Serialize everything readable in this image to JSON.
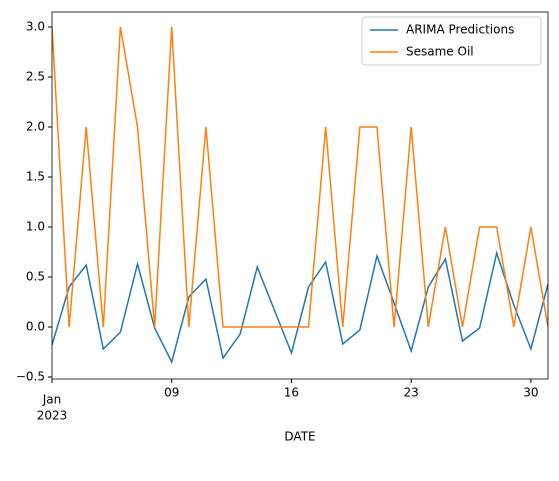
{
  "chart_data": {
    "type": "line",
    "x_label": "DATE",
    "x": [
      "2023-01-02",
      "2023-01-03",
      "2023-01-04",
      "2023-01-05",
      "2023-01-06",
      "2023-01-07",
      "2023-01-08",
      "2023-01-09",
      "2023-01-10",
      "2023-01-11",
      "2023-01-12",
      "2023-01-13",
      "2023-01-14",
      "2023-01-15",
      "2023-01-16",
      "2023-01-17",
      "2023-01-18",
      "2023-01-19",
      "2023-01-20",
      "2023-01-21",
      "2023-01-22",
      "2023-01-23",
      "2023-01-24",
      "2023-01-25",
      "2023-01-26",
      "2023-01-27",
      "2023-01-28",
      "2023-01-29",
      "2023-01-30",
      "2023-01-31"
    ],
    "series": [
      {
        "name": "ARIMA Predictions",
        "color": "#1f77b4",
        "values": [
          -0.18,
          0.4,
          0.62,
          -0.22,
          -0.05,
          0.63,
          -0.01,
          -0.35,
          0.3,
          0.48,
          -0.31,
          -0.07,
          0.6,
          0.17,
          -0.26,
          0.4,
          0.65,
          -0.17,
          -0.03,
          0.71,
          0.24,
          -0.24,
          0.4,
          0.68,
          -0.14,
          -0.01,
          0.74,
          0.22,
          -0.22,
          0.43
        ]
      },
      {
        "name": "Sesame Oil",
        "color": "#ff7f0e",
        "values": [
          3,
          0,
          2,
          0,
          3,
          2,
          0,
          3,
          0,
          2,
          0,
          0,
          0,
          0,
          0,
          0,
          2,
          0,
          2,
          2,
          0,
          2,
          0,
          1,
          0,
          1,
          1,
          0,
          1,
          0
        ]
      }
    ],
    "xlim": [
      "2023-01-02",
      "2023-01-31"
    ],
    "xticks": [
      {
        "value": "2023-01-09",
        "label": "09"
      },
      {
        "value": "2023-01-16",
        "label": "16"
      },
      {
        "value": "2023-01-23",
        "label": "23"
      },
      {
        "value": "2023-01-30",
        "label": "30"
      }
    ],
    "xtick_period": {
      "value": "2023-01-02",
      "month": "Jan",
      "year": "2023"
    },
    "ylim": [
      -0.52,
      3.15
    ],
    "yticks": [
      {
        "value": -0.5,
        "label": "−0.5"
      },
      {
        "value": 0,
        "label": "0.0"
      },
      {
        "value": 0.5,
        "label": "0.5"
      },
      {
        "value": 1,
        "label": "1.0"
      },
      {
        "value": 1.5,
        "label": "1.5"
      },
      {
        "value": 2,
        "label": "2.0"
      },
      {
        "value": 2.5,
        "label": "2.5"
      },
      {
        "value": 3,
        "label": "3.0"
      }
    ],
    "legend": "upper right"
  }
}
